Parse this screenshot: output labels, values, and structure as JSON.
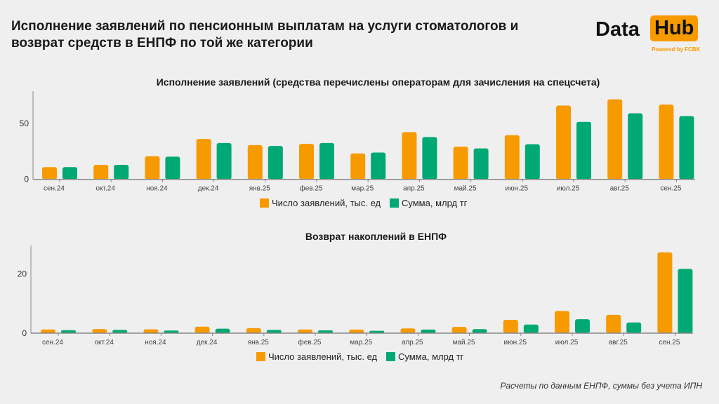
{
  "header": {
    "title": "Исполнение заявлений по пенсионным выплатам на услуги стоматологов и возврат средств в ЕНПФ по той же категории"
  },
  "logo": {
    "text_left": "Data",
    "text_right": "Hub",
    "tagline": "Powered by FCBK"
  },
  "footnote": "Расчеты по данным ЕНПФ, суммы без учета ИПН",
  "colors": {
    "orange": "#f79a00",
    "green": "#00a874"
  },
  "chart_data": [
    {
      "type": "bar",
      "title": "Исполнение заявлений (средства перечислены операторам для зачисления на спецсчета)",
      "categories": [
        "сен.24",
        "окт.24",
        "ноя.24",
        "дек.24",
        "янв.25",
        "фев.25",
        "мар.25",
        "апр.25",
        "май.25",
        "июн.25",
        "июл.25",
        "авг.25",
        "сен.25"
      ],
      "series": [
        {
          "name": "Число заявлений, тыс. ед",
          "color": "#f79a00",
          "values": [
            11,
            13,
            20.7,
            36.2,
            30.7,
            31.8,
            23.2,
            42.3,
            29.3,
            39.6,
            66.1,
            71.7,
            67
          ]
        },
        {
          "name": "Сумма, млрд тг",
          "color": "#00a874",
          "values": [
            11,
            13,
            20.3,
            32.6,
            29.9,
            32.6,
            24,
            37.9,
            27.7,
            31.5,
            51.5,
            59.2,
            56.7
          ]
        }
      ],
      "yticks": [
        "0",
        "50"
      ],
      "ylim": [
        0,
        79
      ],
      "legend": "bottom",
      "grid": false
    },
    {
      "type": "bar",
      "title": "Возврат накоплений в ЕНПФ",
      "categories": [
        "сен.24",
        "окт.24",
        "ноя.24",
        "дек.24",
        "янв.25",
        "фев.25",
        "мар.25",
        "апр.25",
        "май.25",
        "июн.25",
        "июл.25",
        "авг.25",
        "сен.25"
      ],
      "series": [
        {
          "name": "Число заявлений, тыс. ед",
          "color": "#f79a00",
          "values": [
            1.25,
            1.4,
            1.3,
            2.2,
            1.7,
            1.25,
            1.2,
            1.6,
            2.1,
            4.5,
            7.5,
            6.2,
            27.3
          ]
        },
        {
          "name": "Сумма, млрд тг",
          "color": "#00a874",
          "values": [
            1.0,
            1.1,
            0.9,
            1.5,
            1.1,
            0.95,
            0.8,
            1.2,
            1.35,
            2.9,
            4.7,
            3.6,
            21.7
          ]
        }
      ],
      "yticks": [
        "0",
        "20"
      ],
      "ylim": [
        0,
        29.6
      ],
      "legend": "bottom",
      "grid": false
    }
  ]
}
